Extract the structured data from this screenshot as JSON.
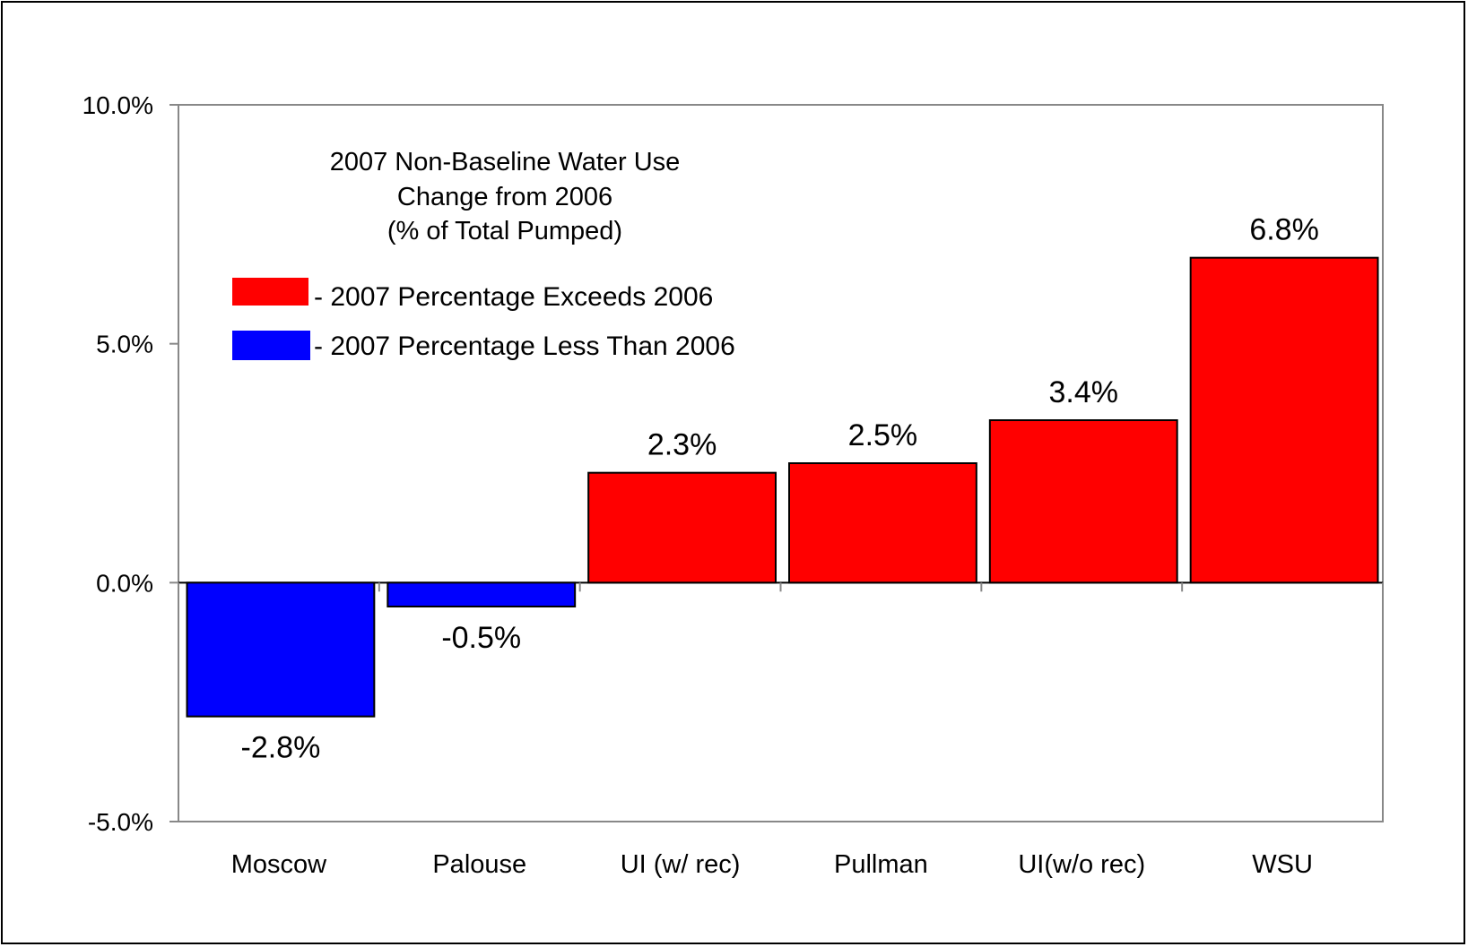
{
  "chart_data": {
    "type": "bar",
    "title_lines": [
      "2007 Non-Baseline Water Use",
      "Change from 2006",
      "(% of Total Pumped)"
    ],
    "categories": [
      "Moscow",
      "Palouse",
      "UI (w/ rec)",
      "Pullman",
      "UI(w/o rec)",
      "WSU"
    ],
    "values": [
      -2.8,
      -0.5,
      2.3,
      2.5,
      3.4,
      6.8
    ],
    "value_labels": [
      "-2.8%",
      "-0.5%",
      "2.3%",
      "2.5%",
      "3.4%",
      "6.8%"
    ],
    "ylim": [
      -5.0,
      10.0
    ],
    "yticks": [
      10.0,
      5.0,
      0.0,
      -5.0
    ],
    "ytick_labels": [
      "10.0%",
      "5.0%",
      "0.0%",
      "-5.0%"
    ],
    "xlabel": "",
    "ylabel": "",
    "grid": false,
    "legend": {
      "placement": "top-left",
      "entries": [
        {
          "label": "- 2007 Percentage Exceeds 2006",
          "color": "#ff0000"
        },
        {
          "label": "- 2007 Percentage Less Than 2006",
          "color": "#0000ff"
        }
      ]
    },
    "colors": {
      "positive": "#ff0000",
      "negative": "#0000ff"
    }
  }
}
